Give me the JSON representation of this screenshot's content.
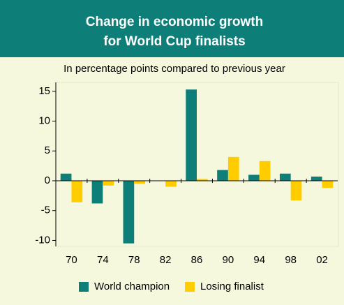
{
  "chart_data": {
    "type": "bar",
    "title": "Change in economic growth",
    "title_line2": "for World Cup finalists",
    "subtitle": "In percentage points compared to previous year",
    "categories": [
      "70",
      "74",
      "78",
      "82",
      "86",
      "90",
      "94",
      "98",
      "02"
    ],
    "series": [
      {
        "name": "World champion",
        "color": "#0e7f78",
        "values": [
          1.2,
          -3.8,
          -10.5,
          0,
          15.3,
          1.8,
          1.0,
          1.2,
          0.7
        ]
      },
      {
        "name": "Losing finalist",
        "color": "#ffcc00",
        "values": [
          -3.6,
          -0.8,
          -0.5,
          -1.0,
          0.3,
          4.0,
          3.3,
          -3.3,
          -1.2
        ]
      }
    ],
    "ylim": [
      -11,
      16.5
    ],
    "yticks": [
      -10,
      -5,
      0,
      5,
      10,
      15
    ],
    "grid": false,
    "legend": "bottom"
  }
}
